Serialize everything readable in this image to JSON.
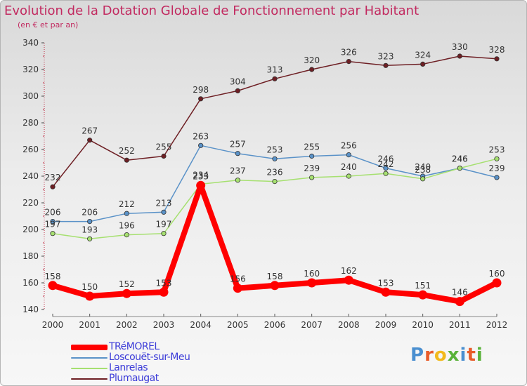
{
  "header": {
    "title": "Evolution de la Dotation Globale de Fonctionnement par Habitant",
    "subtitle": "(en € et par an)"
  },
  "chart_data": {
    "type": "line",
    "title": "Evolution de la Dotation Globale de Fonctionnement par Habitant",
    "subtitle": "(en € et par an)",
    "xlabel": "",
    "ylabel": "",
    "categories": [
      "2000",
      "2001",
      "2002",
      "2003",
      "2004",
      "2005",
      "2006",
      "2007",
      "2008",
      "2009",
      "2010",
      "2011",
      "2012"
    ],
    "ylim": [
      140,
      340
    ],
    "yticks": [
      140,
      160,
      180,
      200,
      220,
      240,
      260,
      280,
      300,
      320,
      340
    ],
    "grid": false,
    "legend_position": "bottom-left",
    "series": [
      {
        "name": "Plumaugat",
        "color": "#6e1f24",
        "values": [
          232,
          267,
          252,
          255,
          298,
          304,
          313,
          320,
          326,
          323,
          324,
          330,
          328
        ]
      },
      {
        "name": "Loscouët-sur-Meu",
        "color": "#5a92c8",
        "values": [
          206,
          206,
          212,
          213,
          263,
          257,
          253,
          255,
          256,
          246,
          240,
          246,
          239
        ]
      },
      {
        "name": "Lanrelas",
        "color": "#a6e070",
        "values": [
          197,
          193,
          196,
          197,
          234,
          237,
          236,
          239,
          240,
          242,
          238,
          246,
          253
        ]
      },
      {
        "name": "TRéMOREL",
        "color": "#ff0000",
        "values": [
          158,
          150,
          152,
          153,
          233,
          156,
          158,
          160,
          162,
          153,
          151,
          146,
          160
        ]
      }
    ]
  },
  "legend": {
    "items": [
      {
        "label": "TRéMOREL",
        "color": "#ff0000"
      },
      {
        "label": "Loscouët-sur-Meu",
        "color": "#5a92c8"
      },
      {
        "label": "Lanrelas",
        "color": "#a6e070"
      },
      {
        "label": "Plumaugat",
        "color": "#6e1f24"
      }
    ]
  },
  "logo": {
    "text": "Proxiti",
    "letters": [
      {
        "char": "P",
        "color": "#4a8fd0"
      },
      {
        "char": "r",
        "color": "#e85c2a"
      },
      {
        "char": "o",
        "color": "#f2b91c"
      },
      {
        "char": "x",
        "color": "#5ab23a"
      },
      {
        "char": "i",
        "color": "#4a8fd0"
      },
      {
        "char": "t",
        "color": "#e85c2a"
      },
      {
        "char": "i",
        "color": "#5ab23a"
      }
    ]
  }
}
